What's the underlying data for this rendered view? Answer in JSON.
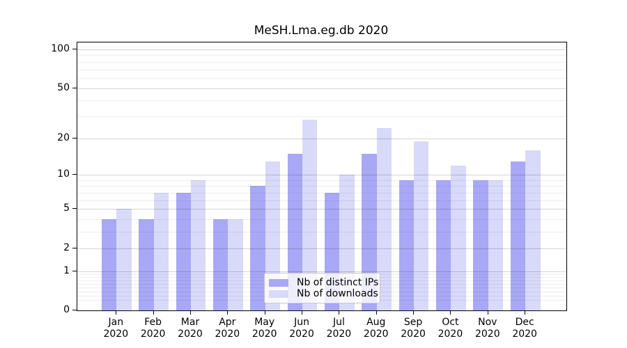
{
  "chart_data": {
    "type": "bar",
    "title": "MeSH.Lma.eg.db 2020",
    "categories": [
      "Jan",
      "Feb",
      "Mar",
      "Apr",
      "May",
      "Jun",
      "Jul",
      "Aug",
      "Sep",
      "Oct",
      "Nov",
      "Dec"
    ],
    "category_year": "2020",
    "series": [
      {
        "name": "Nb of distinct IPs",
        "color": "#a8a8f6",
        "values": [
          4,
          4,
          7,
          4,
          8,
          15,
          7,
          15,
          9,
          9,
          9,
          13
        ]
      },
      {
        "name": "Nb of downloads",
        "color": "#d9d9f9",
        "values": [
          5,
          7,
          9,
          4,
          13,
          28,
          10,
          24,
          19,
          12,
          9,
          16
        ]
      }
    ],
    "xlabel": "",
    "ylabel": "",
    "y_scale": "log1p",
    "ylim": [
      0,
      113
    ],
    "y_major_ticks": [
      0,
      1,
      2,
      5,
      10,
      20,
      50,
      100
    ],
    "y_minor_gridlines": [
      0.2,
      0.3,
      0.4,
      0.5,
      0.6,
      0.7,
      0.8,
      0.9,
      3,
      4,
      6,
      7,
      8,
      9,
      30,
      40,
      60,
      70,
      80,
      90
    ],
    "grid": "on",
    "legend_position": "lower center"
  },
  "colors": {
    "bar_distinct_ips": "#a8a8f6",
    "bar_downloads": "#d9d9f9",
    "spine": "#000000",
    "grid_major": "#d4d4d4",
    "grid_minor": "#ededed",
    "text": "#000000"
  }
}
